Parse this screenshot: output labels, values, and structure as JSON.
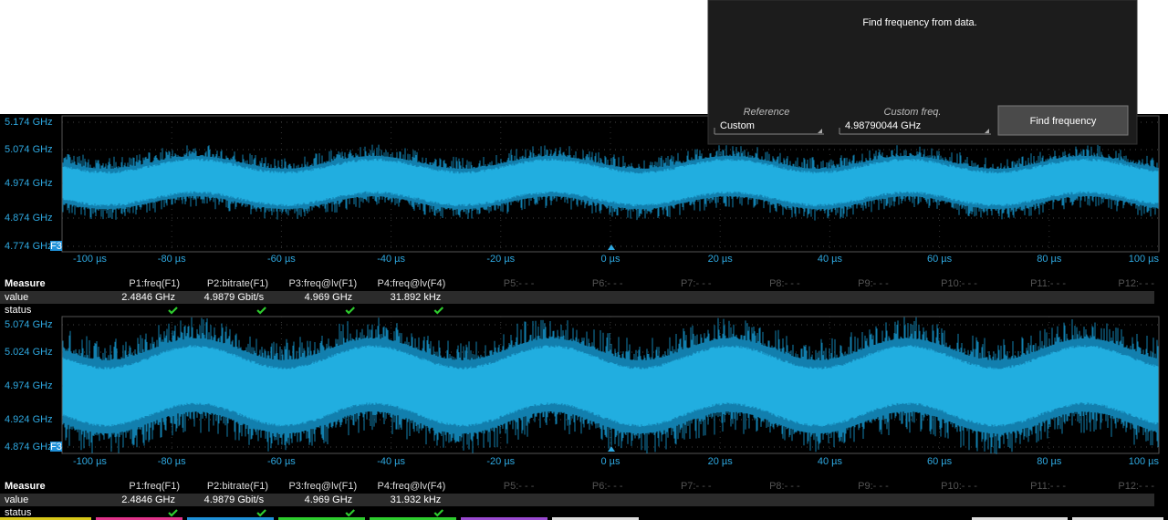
{
  "dialog": {
    "message": "Find frequency from data.",
    "reference_label": "Reference",
    "reference_value": "Custom",
    "custom_freq_label": "Custom freq.",
    "custom_freq_value": "4.98790044 GHz",
    "button": "Find frequency"
  },
  "panels": [
    {
      "marker": "F3",
      "y_labels": [
        "5.174 GHz",
        "5.074 GHz",
        "4.974 GHz",
        "4.874 GHz",
        "4.774 GHz"
      ],
      "x_labels": [
        "-100 µs",
        "-80 µs",
        "-60 µs",
        "-40 µs",
        "-20 µs",
        "0 µs",
        "20 µs",
        "40 µs",
        "60 µs",
        "80 µs",
        "100 µs"
      ],
      "measure": {
        "title": "Measure",
        "columns": [
          "P1:freq(F1)",
          "P2:bitrate(F1)",
          "P3:freq@lv(F1)",
          "P4:freq@lv(F4)",
          "P5:- - -",
          "P6:- - -",
          "P7:- - -",
          "P8:- - -",
          "P9:- - -",
          "P10:- - -",
          "P11:- - -",
          "P12:- - -"
        ],
        "value_label": "value",
        "values": [
          "2.4846 GHz",
          "4.9879 Gbit/s",
          "4.969 GHz",
          "31.892 kHz"
        ],
        "status_label": "status"
      }
    },
    {
      "marker": "F3",
      "y_labels": [
        "5.074 GHz",
        "5.024 GHz",
        "4.974 GHz",
        "4.924 GHz",
        "4.874 GHz"
      ],
      "x_labels": [
        "-100 µs",
        "-80 µs",
        "-60 µs",
        "-40 µs",
        "-20 µs",
        "0 µs",
        "20 µs",
        "40 µs",
        "60 µs",
        "80 µs",
        "100 µs"
      ],
      "measure": {
        "title": "Measure",
        "columns": [
          "P1:freq(F1)",
          "P2:bitrate(F1)",
          "P3:freq@lv(F1)",
          "P4:freq@lv(F4)",
          "P5:- - -",
          "P6:- - -",
          "P7:- - -",
          "P8:- - -",
          "P9:- - -",
          "P10:- - -",
          "P11:- - -",
          "P12:- - -"
        ],
        "value_label": "value",
        "values": [
          "2.4846 GHz",
          "4.9879 Gbit/s",
          "4.969 GHz",
          "31.932 kHz"
        ],
        "status_label": "status"
      }
    }
  ]
}
